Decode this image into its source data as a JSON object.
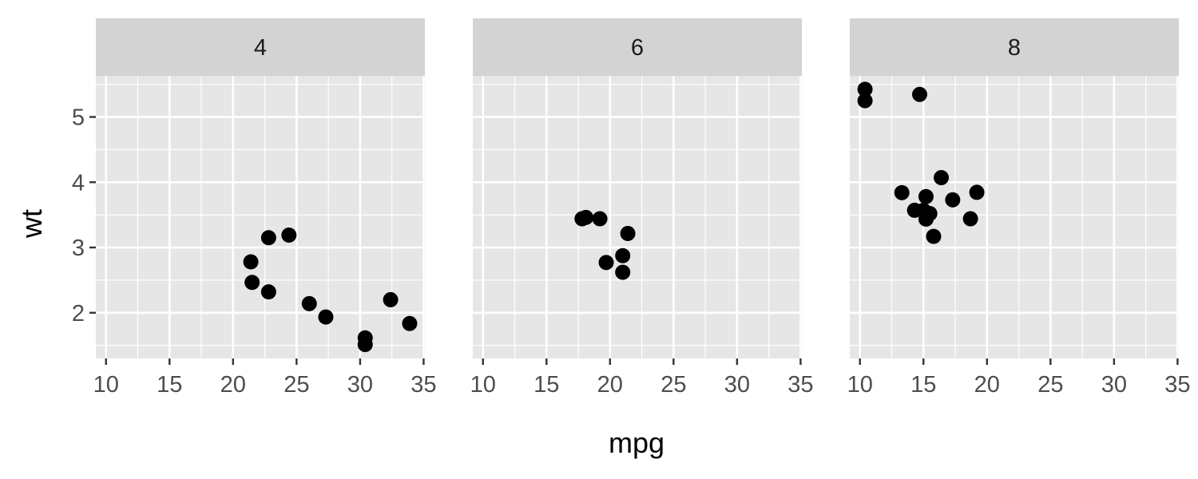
{
  "chart_data": {
    "type": "scatter",
    "xlabel": "mpg",
    "ylabel": "wt",
    "xlim": [
      9.2,
      35.1
    ],
    "ylim": [
      1.3,
      5.63
    ],
    "x_ticks": [
      10,
      15,
      20,
      25,
      30,
      35
    ],
    "y_ticks": [
      2,
      3,
      4,
      5
    ],
    "grid": true,
    "legend": "none",
    "point_color": "#000000",
    "panels": [
      {
        "label": "4",
        "points": [
          {
            "x": 22.8,
            "y": 2.32
          },
          {
            "x": 24.4,
            "y": 3.19
          },
          {
            "x": 22.8,
            "y": 3.15
          },
          {
            "x": 32.4,
            "y": 2.2
          },
          {
            "x": 30.4,
            "y": 1.615
          },
          {
            "x": 33.9,
            "y": 1.835
          },
          {
            "x": 21.5,
            "y": 2.465
          },
          {
            "x": 27.3,
            "y": 1.935
          },
          {
            "x": 26.0,
            "y": 2.14
          },
          {
            "x": 30.4,
            "y": 1.513
          },
          {
            "x": 21.4,
            "y": 2.78
          }
        ]
      },
      {
        "label": "6",
        "points": [
          {
            "x": 21.0,
            "y": 2.62
          },
          {
            "x": 21.0,
            "y": 2.875
          },
          {
            "x": 21.4,
            "y": 3.215
          },
          {
            "x": 18.1,
            "y": 3.46
          },
          {
            "x": 19.2,
            "y": 3.44
          },
          {
            "x": 17.8,
            "y": 3.44
          },
          {
            "x": 19.7,
            "y": 2.77
          }
        ]
      },
      {
        "label": "8",
        "points": [
          {
            "x": 18.7,
            "y": 3.44
          },
          {
            "x": 14.3,
            "y": 3.57
          },
          {
            "x": 16.4,
            "y": 4.07
          },
          {
            "x": 17.3,
            "y": 3.73
          },
          {
            "x": 15.2,
            "y": 3.78
          },
          {
            "x": 10.4,
            "y": 5.25
          },
          {
            "x": 10.4,
            "y": 5.424
          },
          {
            "x": 14.7,
            "y": 5.345
          },
          {
            "x": 15.5,
            "y": 3.52
          },
          {
            "x": 15.2,
            "y": 3.435
          },
          {
            "x": 13.3,
            "y": 3.84
          },
          {
            "x": 19.2,
            "y": 3.845
          },
          {
            "x": 15.8,
            "y": 3.17
          },
          {
            "x": 15.0,
            "y": 3.57
          }
        ]
      }
    ]
  }
}
